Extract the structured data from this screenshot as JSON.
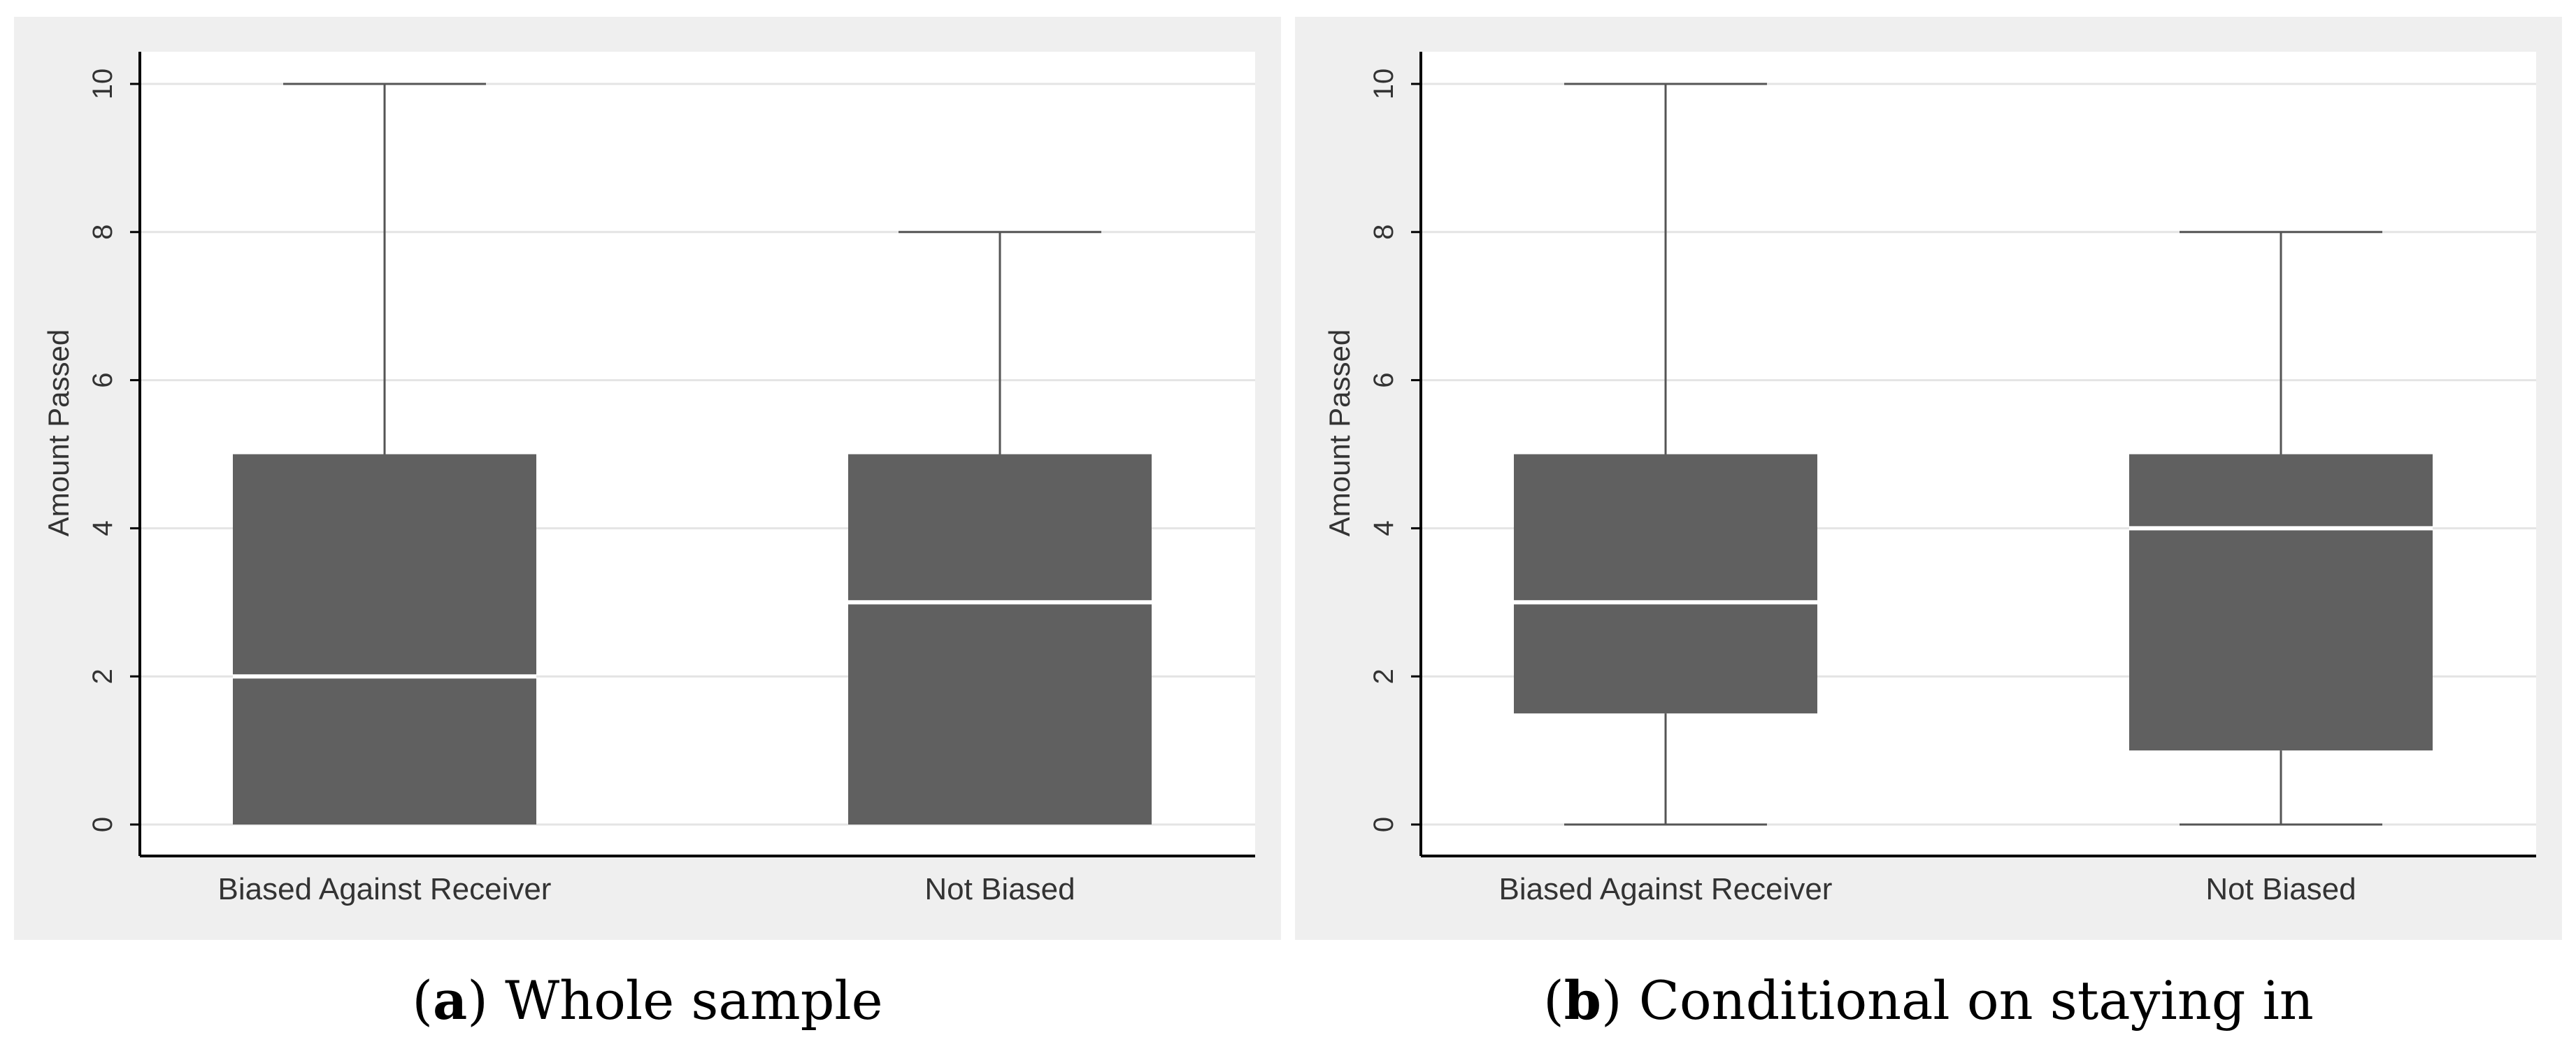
{
  "chart_data": [
    {
      "type": "box",
      "panel_letter": "a",
      "caption": "Whole sample",
      "ylabel": "Amount Passed",
      "ylim": [
        0,
        10
      ],
      "yticks": [
        "0",
        "2",
        "4",
        "6",
        "8",
        "10"
      ],
      "grid": true,
      "categories": [
        "Biased Against Receiver",
        "Not Biased"
      ],
      "boxes": [
        {
          "min": 0,
          "q1": 0,
          "median": 2,
          "q3": 5,
          "max": 10
        },
        {
          "min": 0,
          "q1": 0,
          "median": 3,
          "q3": 5,
          "max": 8
        }
      ]
    },
    {
      "type": "box",
      "panel_letter": "b",
      "caption": "Conditional on staying in",
      "ylabel": "Amount Passed",
      "ylim": [
        0,
        10
      ],
      "yticks": [
        "0",
        "2",
        "4",
        "6",
        "8",
        "10"
      ],
      "grid": true,
      "categories": [
        "Biased Against Receiver",
        "Not Biased"
      ],
      "boxes": [
        {
          "min": 0,
          "q1": 1.5,
          "median": 3,
          "q3": 5,
          "max": 10
        },
        {
          "min": 0,
          "q1": 1,
          "median": 4,
          "q3": 5,
          "max": 8
        }
      ]
    }
  ],
  "colors": {
    "panel_bg": "#efefef",
    "plot_bg": "#ffffff",
    "box_fill": "#606060",
    "median": "#ffffff",
    "whisker": "#555555",
    "grid": "#e4e4e4",
    "axis": "#000000"
  }
}
